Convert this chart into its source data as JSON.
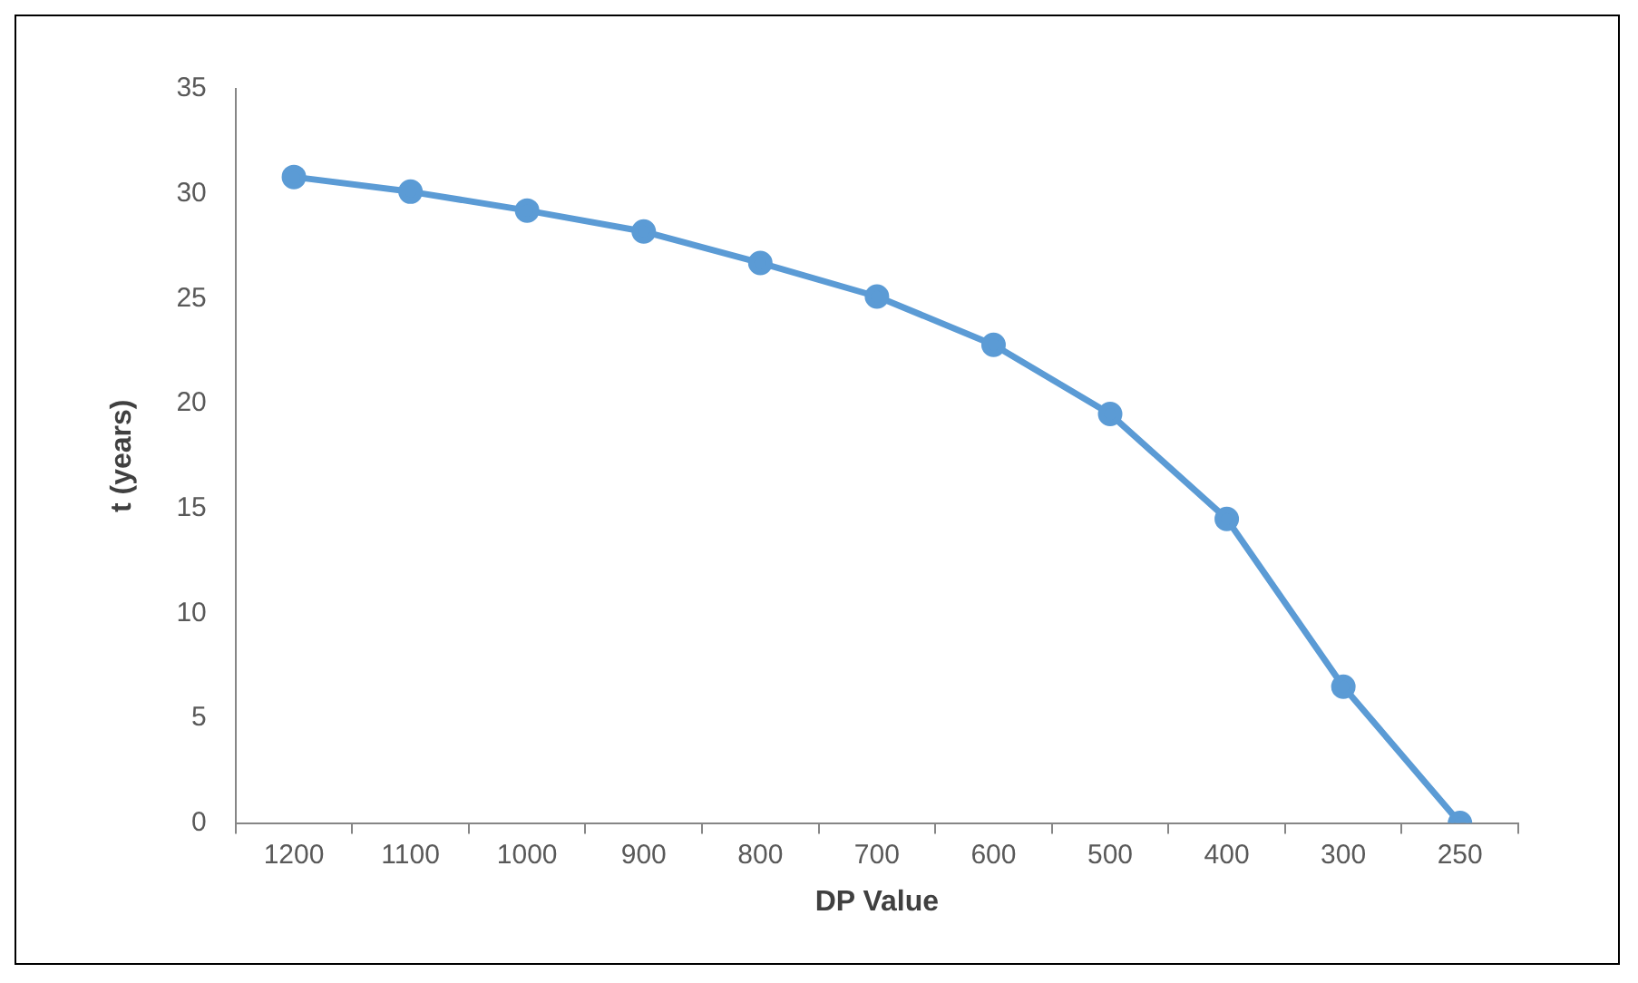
{
  "chart_data": {
    "type": "line",
    "xlabel": "DP Value",
    "ylabel": "t (years)",
    "categories": [
      "1200",
      "1100",
      "1000",
      "900",
      "800",
      "700",
      "600",
      "500",
      "400",
      "300",
      "250"
    ],
    "series": [
      {
        "color": "#5b9bd5",
        "values": [
          30.8,
          30.1,
          29.2,
          28.2,
          26.7,
          25.1,
          22.8,
          19.5,
          14.5,
          6.5,
          0
        ]
      }
    ],
    "ylim": [
      0,
      35
    ],
    "yticks": [
      0,
      5,
      10,
      15,
      20,
      25,
      30,
      35
    ],
    "grid": false,
    "legend": false,
    "marker": "circle",
    "line_style": "solid"
  }
}
